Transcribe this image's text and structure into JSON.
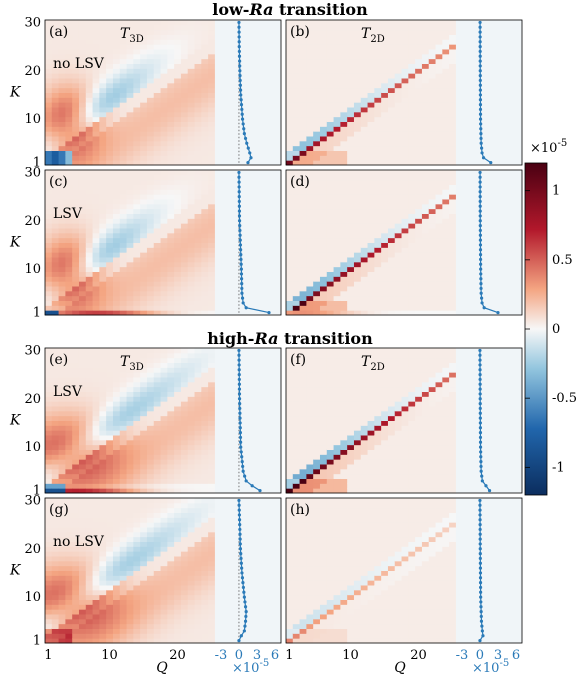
{
  "titles": {
    "low": [
      "low-",
      "Ra",
      " transition"
    ],
    "high": [
      "high-",
      "Ra",
      " transition"
    ]
  },
  "axis": {
    "ylabel": "K",
    "xlabel": "Q",
    "y_ticks": [
      "30",
      "20",
      "10",
      "1"
    ],
    "x_ticks": [
      "1",
      "10",
      "20"
    ],
    "inset_ticks": [
      "-3",
      "0",
      "3",
      "6"
    ],
    "inset_exponent": [
      "×10",
      "-5"
    ]
  },
  "colorbar": {
    "exponent": [
      "×10",
      "-5"
    ],
    "ticks": [
      "1",
      "0.5",
      "0",
      "-0.5",
      "-1"
    ]
  },
  "panels": [
    {
      "id": "a",
      "letter": "(a)",
      "note": "no LSV",
      "trans": [
        "T",
        "3D"
      ]
    },
    {
      "id": "b",
      "letter": "(b)",
      "note": "",
      "trans": [
        "T",
        "2D"
      ]
    },
    {
      "id": "c",
      "letter": "(c)",
      "note": "LSV",
      "trans": null
    },
    {
      "id": "d",
      "letter": "(d)",
      "note": "",
      "trans": null
    },
    {
      "id": "e",
      "letter": "(e)",
      "note": "LSV",
      "trans": [
        "T",
        "3D"
      ]
    },
    {
      "id": "f",
      "letter": "(f)",
      "note": "",
      "trans": [
        "T",
        "2D"
      ]
    },
    {
      "id": "g",
      "letter": "(g)",
      "note": "no LSV",
      "trans": null
    },
    {
      "id": "h",
      "letter": "(h)",
      "note": "",
      "trans": null
    }
  ],
  "colors": {
    "line": "#2a7ab8",
    "axis_blue": "#2a7ab8"
  },
  "chart_data": {
    "type": "heatmap",
    "x_range": [
      1,
      30
    ],
    "y_range": [
      1,
      30
    ],
    "colorbar_range": [
      -1.2,
      1.2
    ],
    "inset_x_range": [
      -4,
      7
    ],
    "profiles": {
      "a": [
        [
          1,
          1.5
        ],
        [
          2,
          2.0
        ],
        [
          3,
          1.8
        ],
        [
          5,
          1.3
        ],
        [
          7,
          0.9
        ],
        [
          10,
          0.6
        ],
        [
          15,
          0.3
        ],
        [
          20,
          0.15
        ],
        [
          25,
          0.05
        ],
        [
          30,
          0.0
        ]
      ],
      "b": [
        [
          1,
          1.8
        ],
        [
          2,
          0.6
        ],
        [
          3,
          0.35
        ],
        [
          5,
          0.2
        ],
        [
          10,
          0.1
        ],
        [
          20,
          0.05
        ],
        [
          30,
          0.02
        ]
      ],
      "c": [
        [
          1,
          5.0
        ],
        [
          2,
          1.2
        ],
        [
          3,
          0.7
        ],
        [
          5,
          0.5
        ],
        [
          10,
          0.4
        ],
        [
          15,
          0.25
        ],
        [
          20,
          0.1
        ],
        [
          30,
          0.0
        ]
      ],
      "d": [
        [
          1,
          3.0
        ],
        [
          2,
          0.7
        ],
        [
          3,
          0.35
        ],
        [
          5,
          0.2
        ],
        [
          10,
          0.12
        ],
        [
          20,
          0.05
        ],
        [
          30,
          0.02
        ]
      ],
      "e": [
        [
          1,
          3.5
        ],
        [
          2,
          2.2
        ],
        [
          3,
          1.2
        ],
        [
          5,
          0.7
        ],
        [
          10,
          0.3
        ],
        [
          20,
          0.1
        ],
        [
          30,
          0.0
        ]
      ],
      "f": [
        [
          1,
          1.6
        ],
        [
          2,
          1.0
        ],
        [
          3,
          0.4
        ],
        [
          5,
          0.2
        ],
        [
          10,
          0.1
        ],
        [
          20,
          0.04
        ],
        [
          30,
          0.0
        ]
      ],
      "g": [
        [
          1,
          0.0
        ],
        [
          2,
          0.4
        ],
        [
          3,
          0.9
        ],
        [
          5,
          1.1
        ],
        [
          7,
          1.2
        ],
        [
          10,
          0.9
        ],
        [
          15,
          0.5
        ],
        [
          20,
          0.25
        ],
        [
          30,
          0.0
        ]
      ],
      "h": [
        [
          1,
          0.0
        ],
        [
          2,
          0.5
        ],
        [
          3,
          0.4
        ],
        [
          5,
          0.25
        ],
        [
          10,
          0.12
        ],
        [
          20,
          0.05
        ],
        [
          30,
          0.0
        ]
      ]
    }
  }
}
